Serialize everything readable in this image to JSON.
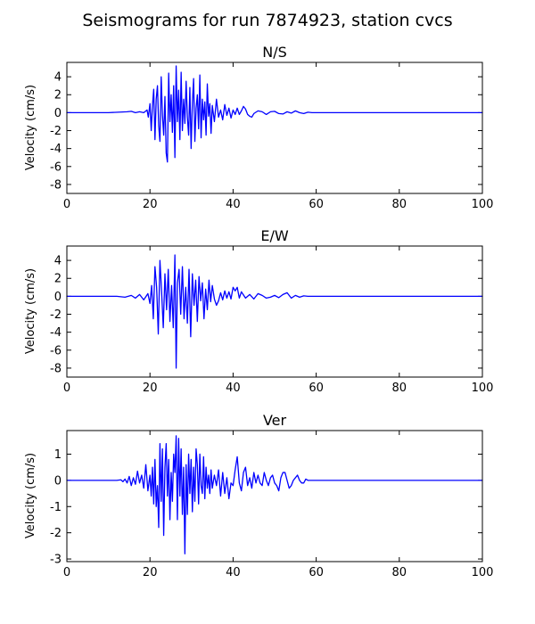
{
  "colors": {
    "background": "#ffffff",
    "trace": "#0000ff",
    "axes": "#000000"
  },
  "chart_data": {
    "type": "line",
    "title": "Seismograms for run 7874923, station cvcs",
    "panels": [
      {
        "title": "N/S",
        "xlabel": "",
        "ylabel": "Velocity (cm/s)",
        "xlim": [
          0,
          100
        ],
        "ylim": [
          -9,
          5.6
        ],
        "xticks": [
          0,
          20,
          40,
          60,
          80,
          100
        ],
        "yticks": [
          4,
          2,
          0,
          -2,
          -4,
          -6,
          -8
        ],
        "grid": false,
        "series": [
          {
            "x": [
              0,
              10,
              14.5,
              15.5,
              16.5,
              17.5,
              18.5,
              19.3,
              19.6,
              20.0,
              20.3,
              20.6,
              20.9,
              21.2,
              21.5,
              21.8,
              22.1,
              22.4,
              22.7,
              23.0,
              23.3,
              23.6,
              23.9,
              24.2,
              24.5,
              24.8,
              25.1,
              25.4,
              25.7,
              26.0,
              26.3,
              26.6,
              26.9,
              27.2,
              27.5,
              27.8,
              28.1,
              28.4,
              28.7,
              29.0,
              29.3,
              29.6,
              29.9,
              30.2,
              30.5,
              30.8,
              31.1,
              31.4,
              31.7,
              32.0,
              32.3,
              32.6,
              32.9,
              33.2,
              33.5,
              33.8,
              34.1,
              34.4,
              34.7,
              35.0,
              35.5,
              36.0,
              36.5,
              37.0,
              37.5,
              38.0,
              38.5,
              39.0,
              39.5,
              40.0,
              40.5,
              41.0,
              41.5,
              42.0,
              42.5,
              43.0,
              43.5,
              44.0,
              44.5,
              45.0,
              46.0,
              47.0,
              48.0,
              49.0,
              50.0,
              51.0,
              52.0,
              53.0,
              54.0,
              55.0,
              56.0,
              57.0,
              58.0,
              59.0,
              60.0,
              65.0,
              80.0,
              100.0
            ],
            "y": [
              0,
              0,
              0.1,
              0.15,
              0,
              0.1,
              0,
              0.3,
              -0.5,
              1.0,
              -2.0,
              0.8,
              2.6,
              -3.0,
              1.5,
              3.0,
              -1.5,
              -3.2,
              4.0,
              -0.3,
              -2.5,
              1.8,
              -4.5,
              -5.5,
              4.4,
              -1.0,
              2.0,
              -2.2,
              3.0,
              -5.0,
              5.2,
              -1.0,
              2.5,
              -3.0,
              4.5,
              -2.0,
              1.5,
              -1.2,
              3.5,
              -0.5,
              -2.5,
              2.8,
              -4.0,
              1.0,
              3.8,
              -3.2,
              0.5,
              2.0,
              -1.8,
              4.2,
              -2.8,
              1.5,
              -0.8,
              1.2,
              -2.5,
              3.2,
              -0.4,
              1.0,
              -2.3,
              0.8,
              -1.0,
              1.5,
              -0.5,
              0.3,
              -0.8,
              0.9,
              -0.3,
              0.5,
              -0.6,
              0.3,
              -0.2,
              0.5,
              -0.2,
              0.2,
              0.7,
              0.4,
              -0.2,
              -0.4,
              -0.5,
              -0.1,
              0.2,
              0.1,
              -0.2,
              0.1,
              0.15,
              -0.1,
              -0.15,
              0.1,
              -0.05,
              0.2,
              0.0,
              -0.1,
              0.05,
              0.0,
              0.0,
              0.0,
              0.0,
              0.0
            ]
          }
        ]
      },
      {
        "title": "E/W",
        "xlabel": "",
        "ylabel": "Velocity (cm/s)",
        "xlim": [
          0,
          100
        ],
        "ylim": [
          -9,
          5.6
        ],
        "xticks": [
          0,
          20,
          40,
          60,
          80,
          100
        ],
        "yticks": [
          4,
          2,
          0,
          -2,
          -4,
          -6,
          -8
        ],
        "grid": false,
        "series": [
          {
            "x": [
              0,
              12,
              14,
              15.5,
              16.5,
              17.5,
              18.5,
              19.5,
              20.0,
              20.4,
              20.8,
              21.2,
              21.6,
              22.0,
              22.4,
              22.8,
              23.2,
              23.6,
              24.0,
              24.4,
              24.8,
              25.2,
              25.6,
              26.0,
              26.3,
              26.6,
              27.0,
              27.4,
              27.8,
              28.2,
              28.6,
              29.0,
              29.4,
              29.8,
              30.2,
              30.6,
              31.0,
              31.4,
              31.8,
              32.2,
              32.6,
              33.0,
              33.4,
              33.8,
              34.2,
              34.6,
              35.0,
              35.5,
              36.0,
              36.5,
              37.0,
              37.5,
              38.0,
              38.5,
              39.0,
              39.5,
              40.0,
              40.5,
              41.0,
              41.5,
              42.0,
              43.0,
              44.0,
              45.0,
              46.0,
              47.0,
              48.0,
              49.0,
              50.0,
              51.0,
              52.0,
              53.0,
              54.0,
              55.0,
              56.0,
              57.0,
              58.0,
              59.0,
              60.0,
              65.0,
              80.0,
              100.0
            ],
            "y": [
              0,
              0,
              -0.1,
              0.1,
              -0.2,
              0.2,
              -0.4,
              0.3,
              -0.8,
              1.2,
              -2.5,
              3.3,
              1.0,
              -4.2,
              4.0,
              0.5,
              -3.5,
              2.5,
              -1.5,
              3.0,
              -2.8,
              1.2,
              -3.5,
              4.6,
              -8.0,
              1.5,
              3.0,
              -2.0,
              3.3,
              -2.5,
              1.0,
              -3.0,
              3.0,
              -4.5,
              2.5,
              -1.0,
              1.8,
              -2.8,
              2.2,
              -0.5,
              1.5,
              -2.5,
              0.8,
              -1.5,
              1.8,
              -0.6,
              1.2,
              -0.3,
              -1.0,
              -0.5,
              0.4,
              -0.4,
              0.6,
              -0.2,
              0.5,
              -0.3,
              1.0,
              0.6,
              1.0,
              -0.2,
              0.5,
              -0.2,
              0.2,
              -0.3,
              0.3,
              0.1,
              -0.2,
              -0.1,
              0.1,
              -0.15,
              0.2,
              0.4,
              -0.2,
              0.1,
              -0.1,
              0.05,
              0.0,
              0.0,
              0.0,
              0.0,
              0.0,
              0.0
            ]
          }
        ]
      },
      {
        "title": "Ver",
        "xlabel": "",
        "ylabel": "Velocity (cm/s)",
        "xlim": [
          0,
          100
        ],
        "ylim": [
          -3.1,
          1.9
        ],
        "xticks": [
          0,
          20,
          40,
          60,
          80,
          100
        ],
        "yticks": [
          1,
          0,
          -1,
          -2,
          -3
        ],
        "grid": false,
        "series": [
          {
            "x": [
              0,
              12,
              13.0,
              13.5,
              14.0,
              14.5,
              15.0,
              15.5,
              16.0,
              16.5,
              17.0,
              17.5,
              18.0,
              18.5,
              19.0,
              19.5,
              20.0,
              20.3,
              20.6,
              20.9,
              21.2,
              21.5,
              21.8,
              22.1,
              22.4,
              22.7,
              23.0,
              23.3,
              23.6,
              23.9,
              24.2,
              24.5,
              24.8,
              25.1,
              25.4,
              25.7,
              26.0,
              26.3,
              26.6,
              26.9,
              27.2,
              27.5,
              27.8,
              28.1,
              28.4,
              28.7,
              29.0,
              29.3,
              29.6,
              29.9,
              30.2,
              30.5,
              30.8,
              31.1,
              31.4,
              31.7,
              32.0,
              32.3,
              32.6,
              32.9,
              33.2,
              33.5,
              33.8,
              34.1,
              34.4,
              34.7,
              35.0,
              35.5,
              36.0,
              36.5,
              37.0,
              37.5,
              38.0,
              38.5,
              39.0,
              39.5,
              40.0,
              40.5,
              41.0,
              41.5,
              42.0,
              42.5,
              43.0,
              43.5,
              44.0,
              44.5,
              45.0,
              45.5,
              46.0,
              46.5,
              47.0,
              47.5,
              48.0,
              48.5,
              49.0,
              49.5,
              50.0,
              50.5,
              51.0,
              51.5,
              52.0,
              52.5,
              53.0,
              53.5,
              54.0,
              54.5,
              55.0,
              55.5,
              56.0,
              56.5,
              57.0,
              57.5,
              58.0,
              58.5,
              59.0,
              60.0,
              65.0,
              80.0,
              100.0
            ],
            "y": [
              0,
              0,
              0.02,
              -0.05,
              0.05,
              -0.1,
              0.15,
              -0.2,
              0.1,
              -0.15,
              0.35,
              -0.1,
              0.2,
              -0.3,
              0.6,
              -0.4,
              0.2,
              -0.6,
              0.5,
              -0.9,
              0.8,
              -1.0,
              -0.2,
              -1.8,
              1.4,
              -0.8,
              1.2,
              -2.1,
              0.5,
              1.4,
              -0.6,
              0.8,
              -1.5,
              0.3,
              -0.8,
              1.0,
              0.3,
              1.7,
              -1.5,
              1.6,
              -0.6,
              1.2,
              -1.3,
              0.5,
              -2.8,
              0.6,
              -1.3,
              1.0,
              -0.5,
              0.8,
              -1.2,
              0.5,
              -0.8,
              1.2,
              0.6,
              -0.9,
              1.0,
              -0.2,
              -0.5,
              0.9,
              -0.7,
              0.5,
              -0.3,
              0.2,
              -0.5,
              0.4,
              -0.3,
              0.2,
              -0.2,
              0.4,
              -0.6,
              0.3,
              -0.5,
              0.1,
              -0.7,
              -0.1,
              -0.2,
              0.4,
              0.9,
              -0.1,
              -0.4,
              0.3,
              0.5,
              -0.2,
              0.1,
              -0.3,
              0.3,
              -0.1,
              0.2,
              -0.1,
              -0.2,
              0.3,
              0.0,
              -0.2,
              0.1,
              0.2,
              -0.1,
              -0.2,
              -0.4,
              0.1,
              0.3,
              0.3,
              0.0,
              -0.3,
              -0.2,
              0.0,
              0.1,
              0.2,
              0.0,
              -0.1,
              -0.1,
              0.05,
              0.0,
              0.0,
              0.0,
              0.0,
              0.0,
              0.0,
              0.0
            ]
          }
        ]
      }
    ]
  }
}
